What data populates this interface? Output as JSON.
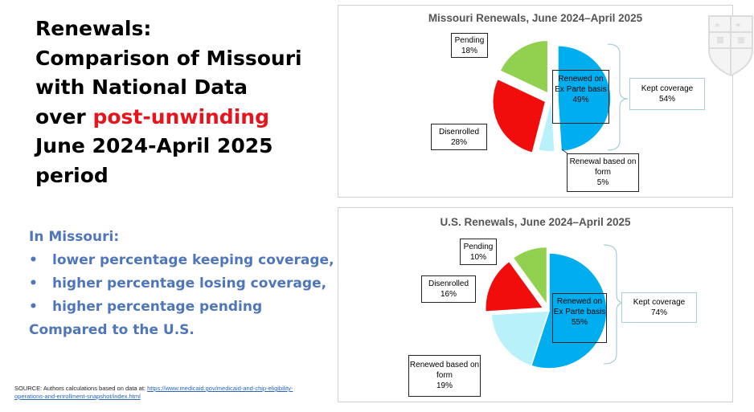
{
  "slide": {
    "title_lines": [
      "Renewals:",
      "Comparison of Missouri",
      "with National Data"
    ],
    "title_prefix": "over ",
    "title_highlight": "post-unwinding",
    "title_lines_after": [
      "June 2024-April 2025",
      "period"
    ],
    "findings_heading": "In Missouri:",
    "findings": [
      "lower percentage keeping coverage,",
      "higher percentage losing coverage,",
      "higher percentage pending"
    ],
    "findings_footer": "Compared to the U.S.",
    "bullet_char": "•",
    "source_label": "SOURCE: Authors calculations based on data at: ",
    "source_url": "https://www.medicaid.gov/medicaid-and-chip-eligibility-operations-and-enrollment-snapshot/index.html"
  },
  "colors": {
    "ex_parte": "#00aeef",
    "form": "#b8f1fa",
    "disenrolled": "#f20d0d",
    "pending": "#92d050",
    "highlight": "#e8141b",
    "findings": "#4f76b8"
  },
  "chart_data": [
    {
      "type": "pie",
      "title": "Missouri Renewals, June 2024–April 2025",
      "slices": [
        {
          "label": "Renewed on Ex Parte basis",
          "value": 49,
          "value_label": "49%",
          "exploded": true
        },
        {
          "label": "Renewal based on form",
          "value": 5,
          "value_label": "5%",
          "exploded": false
        },
        {
          "label": "Disenrolled",
          "value": 28,
          "value_label": "28%",
          "exploded": true
        },
        {
          "label": "Pending",
          "value": 18,
          "value_label": "18%",
          "exploded": true
        }
      ],
      "bracket": {
        "label": "Kept coverage",
        "value_label": "54%"
      }
    },
    {
      "type": "pie",
      "title": "U.S. Renewals, June 2024–April 2025",
      "slices": [
        {
          "label": "Renewed on Ex Parte basis",
          "value": 55,
          "value_label": "55%",
          "exploded": false
        },
        {
          "label": "Renewed based on form",
          "value": 19,
          "value_label": "19%",
          "exploded": false
        },
        {
          "label": "Disenrolled",
          "value": 16,
          "value_label": "16%",
          "exploded": true
        },
        {
          "label": "Pending",
          "value": 10,
          "value_label": "10%",
          "exploded": true
        }
      ],
      "bracket": {
        "label": "Kept coverage",
        "value_label": "74%"
      }
    }
  ]
}
